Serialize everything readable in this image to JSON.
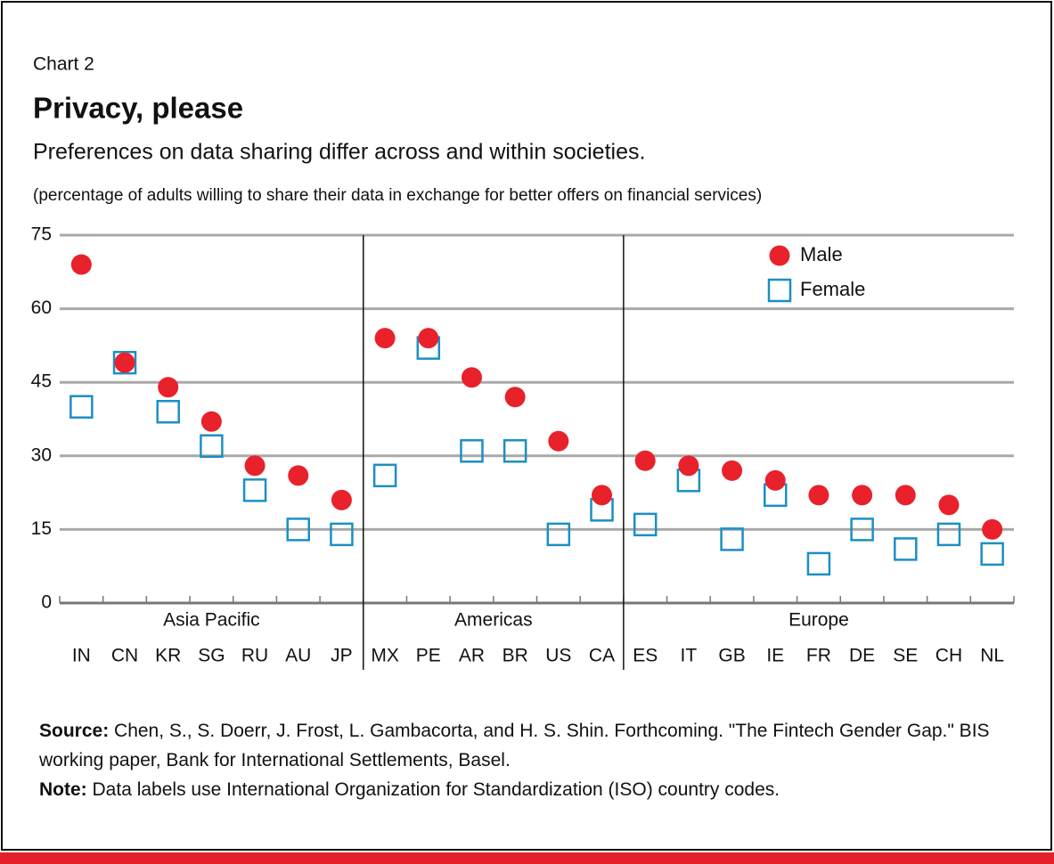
{
  "chart_data": {
    "type": "scatter",
    "label": "Chart 2",
    "title": "Privacy, please",
    "subtitle": "Preferences on data sharing differ across and within societies.",
    "y_label": "(percentage of adults willing to share their data in exchange for better offers on financial services)",
    "groups": [
      {
        "name": "Asia Pacific",
        "categories": [
          "IN",
          "CN",
          "KR",
          "SG",
          "RU",
          "AU",
          "JP"
        ]
      },
      {
        "name": "Americas",
        "categories": [
          "MX",
          "PE",
          "AR",
          "BR",
          "US",
          "CA"
        ]
      },
      {
        "name": "Europe",
        "categories": [
          "ES",
          "IT",
          "GB",
          "IE",
          "FR",
          "DE",
          "SE",
          "CH",
          "NL"
        ]
      }
    ],
    "series": [
      {
        "name": "Male",
        "color": "#e8212b",
        "marker": "circle",
        "values": [
          69,
          49,
          44,
          37,
          28,
          26,
          21,
          54,
          54,
          46,
          42,
          33,
          22,
          29,
          28,
          27,
          25,
          22,
          22,
          22,
          20,
          15
        ]
      },
      {
        "name": "Female",
        "color": "#1b8fc4",
        "marker": "square",
        "values": [
          40,
          49,
          39,
          32,
          23,
          15,
          14,
          26,
          52,
          31,
          31,
          14,
          19,
          16,
          25,
          13,
          22,
          8,
          15,
          11,
          14,
          10
        ]
      }
    ],
    "ylim": [
      0,
      75
    ],
    "yticks": [
      0,
      15,
      30,
      45,
      60,
      75
    ],
    "grid": true,
    "legend": "top-right"
  },
  "footer": {
    "source_label": "Source:",
    "source": "Chen, S., S. Doerr, J. Frost, L. Gambacorta, and H. S. Shin. Forthcoming. \"The Fintech Gender Gap.\" BIS working paper, Bank for International Settlements, Basel.",
    "note_label": "Note:",
    "note": "Data labels use International Organization for Standardization (ISO) country codes."
  }
}
